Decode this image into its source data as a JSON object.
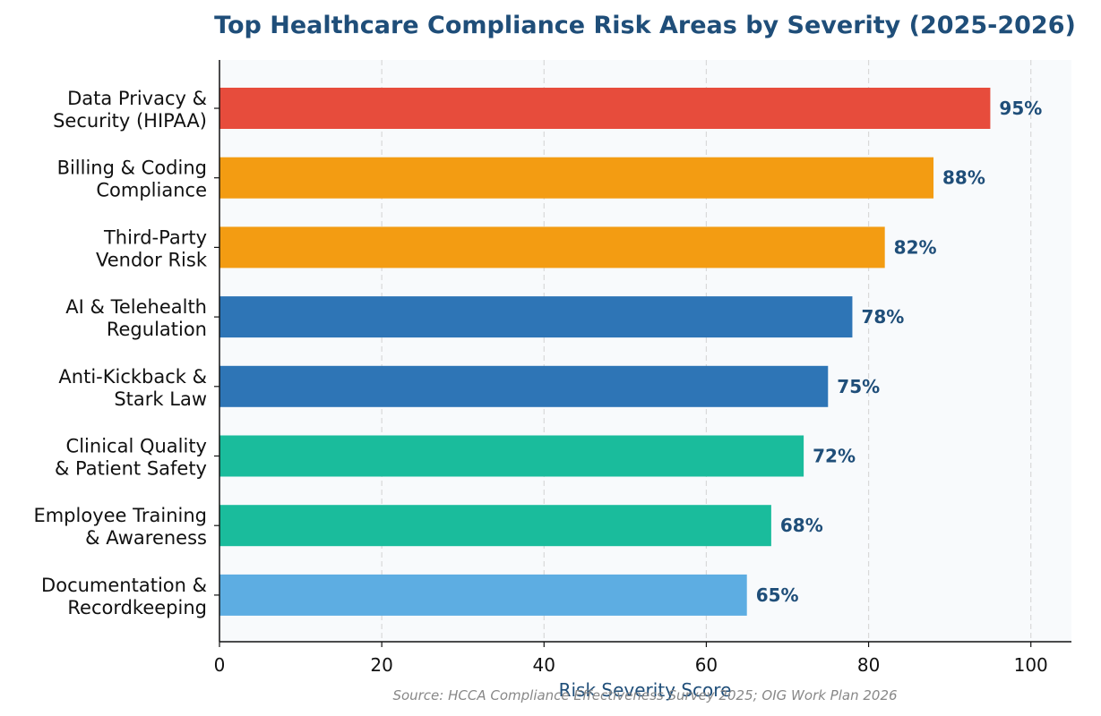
{
  "chart_data": {
    "type": "bar",
    "orientation": "horizontal",
    "title": "Top Healthcare Compliance Risk Areas by Severity (2025-2026)",
    "xlabel": "Risk Severity Score",
    "xlim": [
      0,
      105
    ],
    "xticks": [
      0,
      20,
      40,
      60,
      80,
      100
    ],
    "grid": "vertical-dashed",
    "source": "Source: HCCA Compliance Effectiveness Survey 2025; OIG Work Plan 2026",
    "categories": [
      [
        "Data Privacy &",
        "Security (HIPAA)"
      ],
      [
        "Billing & Coding",
        "Compliance"
      ],
      [
        "Third-Party",
        "Vendor Risk"
      ],
      [
        "AI & Telehealth",
        "Regulation"
      ],
      [
        "Anti-Kickback &",
        "Stark Law"
      ],
      [
        "Clinical Quality",
        "& Patient Safety"
      ],
      [
        "Employee Training",
        "& Awareness"
      ],
      [
        "Documentation &",
        "Recordkeeping"
      ]
    ],
    "values": [
      95,
      88,
      82,
      78,
      75,
      72,
      68,
      65
    ],
    "value_labels": [
      "95%",
      "88%",
      "82%",
      "78%",
      "75%",
      "72%",
      "68%",
      "65%"
    ],
    "colors": [
      "#e74c3c",
      "#f39c12",
      "#f39c12",
      "#2e75b6",
      "#2e75b6",
      "#1abc9c",
      "#1abc9c",
      "#5dade2"
    ]
  }
}
